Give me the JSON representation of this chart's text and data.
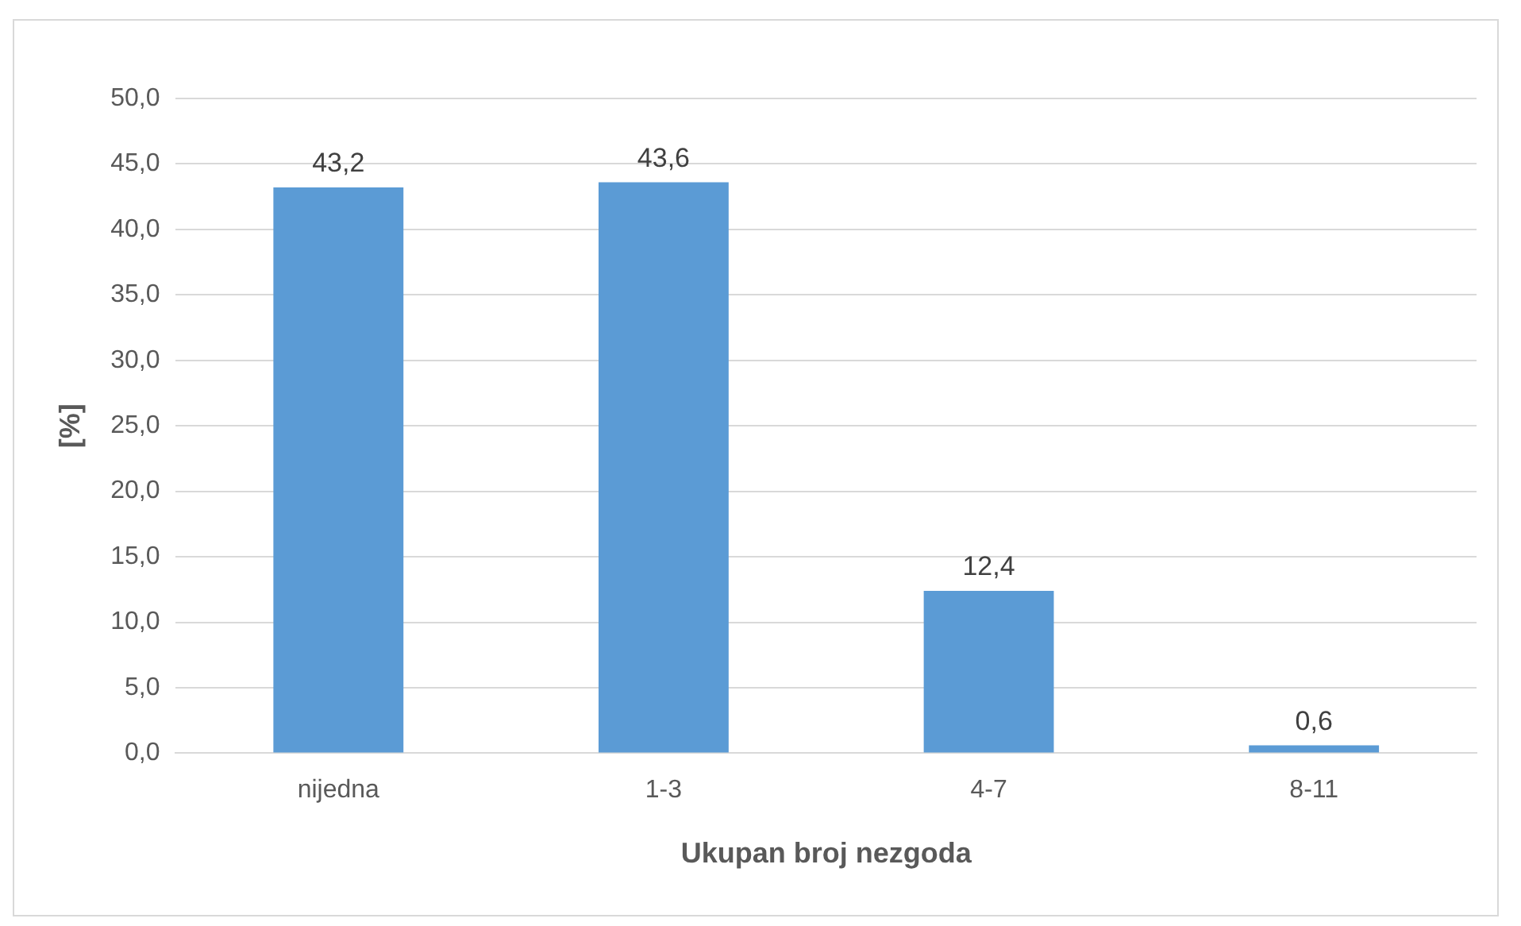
{
  "chart_data": {
    "type": "bar",
    "xlabel": "Ukupan broj nezgoda",
    "ylabel": "[%]",
    "categories": [
      "nijedna",
      "1-3",
      "4-7",
      "8-11"
    ],
    "values": [
      43.2,
      43.6,
      12.4,
      0.6
    ],
    "value_labels": [
      "43,2",
      "43,6",
      "12,4",
      "0,6"
    ],
    "color": "#5b9bd5",
    "ylim": [
      0,
      50
    ],
    "yticks": [
      {
        "value": 0,
        "label": "0,0"
      },
      {
        "value": 5,
        "label": "5,0"
      },
      {
        "value": 10,
        "label": "10,0"
      },
      {
        "value": 15,
        "label": "15,0"
      },
      {
        "value": 20,
        "label": "20,0"
      },
      {
        "value": 25,
        "label": "25,0"
      },
      {
        "value": 30,
        "label": "30,0"
      },
      {
        "value": 35,
        "label": "35,0"
      },
      {
        "value": 40,
        "label": "40,0"
      },
      {
        "value": 45,
        "label": "45,0"
      },
      {
        "value": 50,
        "label": "50,0"
      }
    ],
    "grid": "y",
    "legend": false
  }
}
